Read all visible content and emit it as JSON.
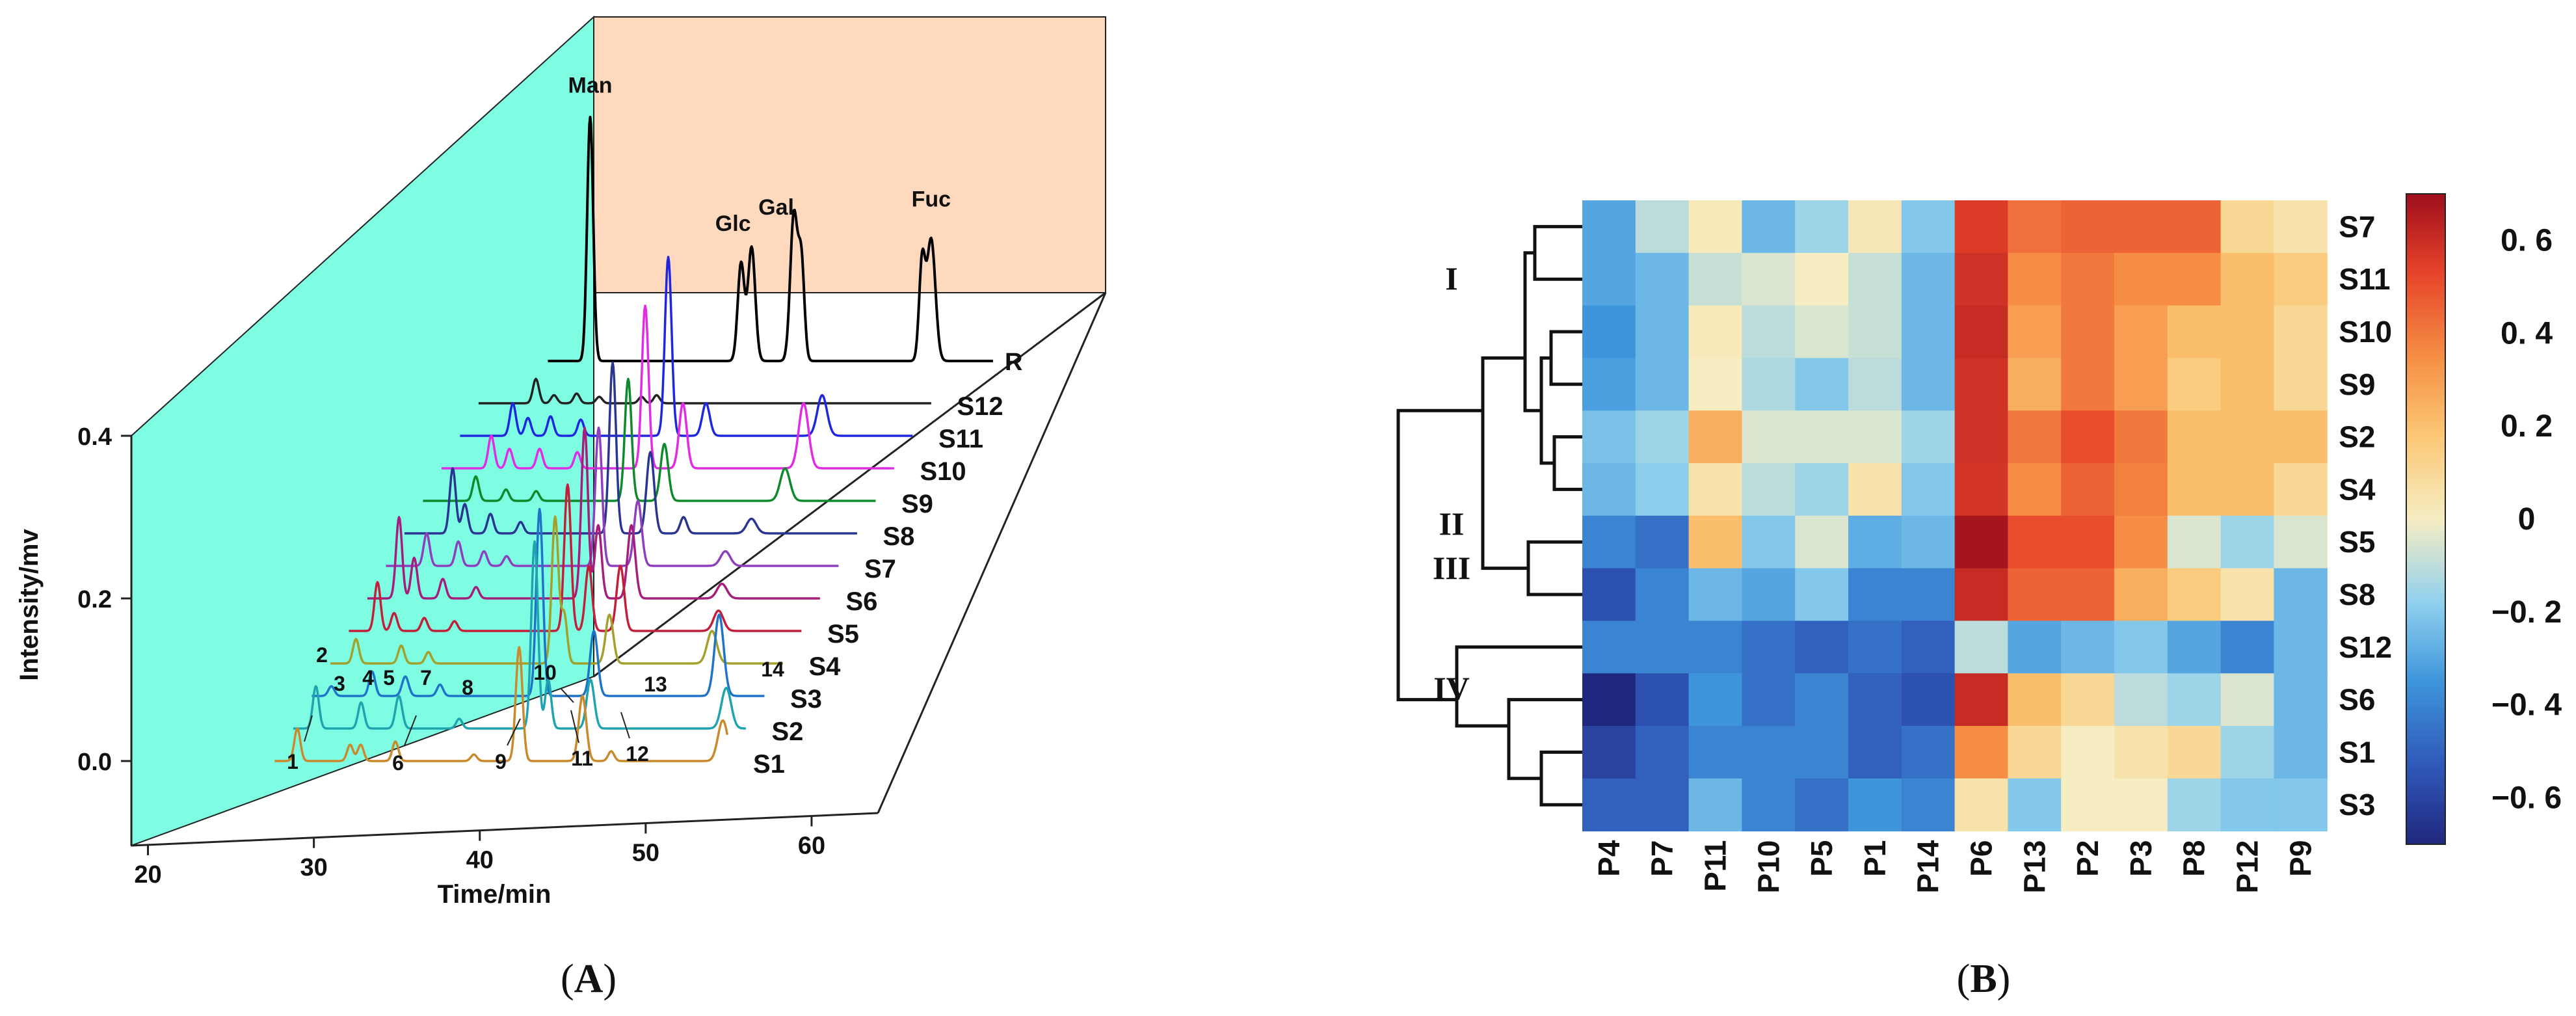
{
  "panels": [
    {
      "letter": "A"
    },
    {
      "letter": "B"
    }
  ],
  "chart_data": [
    {
      "type": "line",
      "subtype": "stacked-3d-chromatograms",
      "xlabel": "Time/min",
      "ylabel": "Intensity/mv",
      "xlim": [
        19,
        64
      ],
      "ylim": [
        -0.05,
        0.42
      ],
      "xticks": [
        20,
        30,
        40,
        50,
        60
      ],
      "yticks": [
        0.0,
        0.2,
        0.4
      ],
      "colors": {
        "side_wall": "#7EFDE3",
        "back_wall": "#FFD9BE"
      },
      "standard": {
        "name": "R",
        "color": "#000000",
        "peaks": [
          {
            "t": 34.3,
            "h": 0.3,
            "w": 0.2,
            "label": "Man"
          },
          {
            "t": 44.3,
            "h": 0.12,
            "w": 0.22,
            "label": "Glc"
          },
          {
            "t": 45.0,
            "h": 0.14,
            "w": 0.24,
            "label": "Gal"
          },
          {
            "t": 47.8,
            "h": 0.18,
            "w": 0.24,
            "label": "Gal"
          },
          {
            "t": 48.3,
            "h": 0.12,
            "w": 0.2,
            "label": ""
          },
          {
            "t": 56.3,
            "h": 0.12,
            "w": 0.2,
            "label": ""
          },
          {
            "t": 56.9,
            "h": 0.15,
            "w": 0.28,
            "label": "Fuc"
          }
        ],
        "peak_labels": [
          "Man",
          "Glc",
          "Gal",
          "Fuc"
        ]
      },
      "peak_numbers": [
        "1",
        "2",
        "3",
        "4",
        "5",
        "6",
        "7",
        "8",
        "9",
        "10",
        "11",
        "12",
        "13",
        "14"
      ],
      "series": [
        {
          "name": "S1",
          "color": "#C98A2E",
          "level": 0,
          "peaks": [
            {
              "t": 30.0,
              "h": 0.04,
              "w": 0.2
            },
            {
              "t": 33.5,
              "h": 0.02,
              "w": 0.2
            },
            {
              "t": 34.2,
              "h": 0.02,
              "w": 0.2
            },
            {
              "t": 36.5,
              "h": 0.024,
              "w": 0.2
            },
            {
              "t": 41.7,
              "h": 0.008,
              "w": 0.2
            },
            {
              "t": 44.7,
              "h": 0.14,
              "w": 0.22
            },
            {
              "t": 48.9,
              "h": 0.08,
              "w": 0.25
            },
            {
              "t": 50.8,
              "h": 0.012,
              "w": 0.2
            },
            {
              "t": 58.2,
              "h": 0.05,
              "w": 0.32
            }
          ]
        },
        {
          "name": "S2",
          "color": "#1FA3AE",
          "level": 1,
          "peaks": [
            {
              "t": 30.0,
              "h": 0.052,
              "w": 0.2
            },
            {
              "t": 33.0,
              "h": 0.032,
              "w": 0.2
            },
            {
              "t": 35.5,
              "h": 0.04,
              "w": 0.22
            },
            {
              "t": 39.5,
              "h": 0.012,
              "w": 0.2
            },
            {
              "t": 44.5,
              "h": 0.23,
              "w": 0.22
            },
            {
              "t": 45.4,
              "h": 0.06,
              "w": 0.2
            },
            {
              "t": 48.2,
              "h": 0.06,
              "w": 0.25
            },
            {
              "t": 57.2,
              "h": 0.05,
              "w": 0.32
            }
          ]
        },
        {
          "name": "S3",
          "color": "#1F74C9",
          "level": 2,
          "peaks": [
            {
              "t": 29.8,
              "h": 0.012,
              "w": 0.2
            },
            {
              "t": 32.5,
              "h": 0.03,
              "w": 0.2
            },
            {
              "t": 34.7,
              "h": 0.024,
              "w": 0.22
            },
            {
              "t": 37.0,
              "h": 0.014,
              "w": 0.2
            },
            {
              "t": 43.6,
              "h": 0.23,
              "w": 0.22
            },
            {
              "t": 47.2,
              "h": 0.08,
              "w": 0.25
            },
            {
              "t": 55.5,
              "h": 0.1,
              "w": 0.3
            }
          ]
        },
        {
          "name": "S4",
          "color": "#A3A02C",
          "level": 3,
          "peaks": [
            {
              "t": 30.2,
              "h": 0.03,
              "w": 0.2
            },
            {
              "t": 33.2,
              "h": 0.022,
              "w": 0.2
            },
            {
              "t": 35.0,
              "h": 0.014,
              "w": 0.2
            },
            {
              "t": 43.4,
              "h": 0.18,
              "w": 0.22
            },
            {
              "t": 44.0,
              "h": 0.06,
              "w": 0.2
            },
            {
              "t": 47.0,
              "h": 0.06,
              "w": 0.25
            },
            {
              "t": 53.8,
              "h": 0.04,
              "w": 0.32
            }
          ]
        },
        {
          "name": "S5",
          "color": "#C21F3A",
          "level": 4,
          "peaks": [
            {
              "t": 30.4,
              "h": 0.06,
              "w": 0.2
            },
            {
              "t": 31.5,
              "h": 0.022,
              "w": 0.2
            },
            {
              "t": 33.5,
              "h": 0.016,
              "w": 0.2
            },
            {
              "t": 35.5,
              "h": 0.012,
              "w": 0.2
            },
            {
              "t": 43.0,
              "h": 0.18,
              "w": 0.22
            },
            {
              "t": 44.4,
              "h": 0.08,
              "w": 0.22
            },
            {
              "t": 46.5,
              "h": 0.08,
              "w": 0.25
            },
            {
              "t": 53.0,
              "h": 0.025,
              "w": 0.32
            }
          ]
        },
        {
          "name": "S6",
          "color": "#A51E7C",
          "level": 5,
          "peaks": [
            {
              "t": 30.6,
              "h": 0.1,
              "w": 0.2
            },
            {
              "t": 31.6,
              "h": 0.05,
              "w": 0.2
            },
            {
              "t": 33.5,
              "h": 0.024,
              "w": 0.2
            },
            {
              "t": 35.7,
              "h": 0.014,
              "w": 0.2
            },
            {
              "t": 42.9,
              "h": 0.21,
              "w": 0.22
            },
            {
              "t": 43.8,
              "h": 0.09,
              "w": 0.22
            },
            {
              "t": 46.0,
              "h": 0.09,
              "w": 0.25
            },
            {
              "t": 52.0,
              "h": 0.018,
              "w": 0.32
            }
          ]
        },
        {
          "name": "S7",
          "color": "#8E3FBE",
          "level": 6,
          "peaks": [
            {
              "t": 31.2,
              "h": 0.04,
              "w": 0.2
            },
            {
              "t": 33.3,
              "h": 0.03,
              "w": 0.2
            },
            {
              "t": 35.0,
              "h": 0.018,
              "w": 0.2
            },
            {
              "t": 36.5,
              "h": 0.012,
              "w": 0.2
            },
            {
              "t": 42.6,
              "h": 0.17,
              "w": 0.22
            },
            {
              "t": 45.2,
              "h": 0.08,
              "w": 0.25
            },
            {
              "t": 51.0,
              "h": 0.018,
              "w": 0.32
            }
          ]
        },
        {
          "name": "S8",
          "color": "#2A3592",
          "level": 7,
          "peaks": [
            {
              "t": 31.7,
              "h": 0.08,
              "w": 0.2
            },
            {
              "t": 32.5,
              "h": 0.036,
              "w": 0.2
            },
            {
              "t": 34.2,
              "h": 0.024,
              "w": 0.2
            },
            {
              "t": 36.2,
              "h": 0.014,
              "w": 0.2
            },
            {
              "t": 42.3,
              "h": 0.21,
              "w": 0.22
            },
            {
              "t": 44.8,
              "h": 0.1,
              "w": 0.25
            },
            {
              "t": 47.0,
              "h": 0.02,
              "w": 0.22
            },
            {
              "t": 51.5,
              "h": 0.018,
              "w": 0.32
            }
          ]
        },
        {
          "name": "S9",
          "color": "#0E8A2C",
          "level": 8,
          "peaks": [
            {
              "t": 32.0,
              "h": 0.03,
              "w": 0.2
            },
            {
              "t": 34.0,
              "h": 0.014,
              "w": 0.2
            },
            {
              "t": 36.0,
              "h": 0.012,
              "w": 0.2
            },
            {
              "t": 42.1,
              "h": 0.15,
              "w": 0.22
            },
            {
              "t": 44.5,
              "h": 0.07,
              "w": 0.25
            },
            {
              "t": 52.5,
              "h": 0.04,
              "w": 0.32
            }
          ]
        },
        {
          "name": "S10",
          "color": "#E22BE4",
          "level": 9,
          "peaks": [
            {
              "t": 31.8,
              "h": 0.04,
              "w": 0.2
            },
            {
              "t": 33.0,
              "h": 0.024,
              "w": 0.2
            },
            {
              "t": 35.0,
              "h": 0.024,
              "w": 0.2
            },
            {
              "t": 37.5,
              "h": 0.02,
              "w": 0.2
            },
            {
              "t": 42.0,
              "h": 0.2,
              "w": 0.22
            },
            {
              "t": 44.5,
              "h": 0.08,
              "w": 0.25
            },
            {
              "t": 52.5,
              "h": 0.08,
              "w": 0.32
            }
          ]
        },
        {
          "name": "S11",
          "color": "#1F26E0",
          "level": 10,
          "peaks": [
            {
              "t": 32.0,
              "h": 0.04,
              "w": 0.2
            },
            {
              "t": 33.0,
              "h": 0.022,
              "w": 0.2
            },
            {
              "t": 34.5,
              "h": 0.024,
              "w": 0.2
            },
            {
              "t": 36.5,
              "h": 0.02,
              "w": 0.2
            },
            {
              "t": 42.3,
              "h": 0.22,
              "w": 0.22
            },
            {
              "t": 44.8,
              "h": 0.04,
              "w": 0.25
            },
            {
              "t": 52.5,
              "h": 0.05,
              "w": 0.32
            }
          ]
        },
        {
          "name": "S12",
          "color": "#222222",
          "level": 11,
          "peaks": [
            {
              "t": 32.3,
              "h": 0.03,
              "w": 0.2
            },
            {
              "t": 33.5,
              "h": 0.01,
              "w": 0.2
            },
            {
              "t": 35.0,
              "h": 0.012,
              "w": 0.2
            },
            {
              "t": 36.5,
              "h": 0.008,
              "w": 0.2
            },
            {
              "t": 39.3,
              "h": 0.008,
              "w": 0.2
            },
            {
              "t": 40.3,
              "h": 0.01,
              "w": 0.2
            }
          ]
        }
      ]
    },
    {
      "type": "heatmap",
      "columns": [
        "P4",
        "P7",
        "P11",
        "P10",
        "P5",
        "P1",
        "P14",
        "P6",
        "P13",
        "P2",
        "P3",
        "P8",
        "P12",
        "P9"
      ],
      "rows": [
        "S7",
        "S11",
        "S10",
        "S9",
        "S2",
        "S4",
        "S5",
        "S8",
        "S12",
        "S6",
        "S1",
        "S3"
      ],
      "values": [
        [
          -0.3,
          -0.1,
          0.02,
          -0.25,
          -0.15,
          0.03,
          -0.2,
          0.55,
          0.42,
          0.45,
          0.45,
          0.45,
          0.1,
          0.05
        ],
        [
          -0.3,
          -0.25,
          -0.08,
          -0.05,
          0.0,
          -0.08,
          -0.25,
          0.58,
          0.35,
          0.4,
          0.35,
          0.35,
          0.2,
          0.15
        ],
        [
          -0.35,
          -0.25,
          0.02,
          -0.1,
          -0.05,
          -0.08,
          -0.25,
          0.6,
          0.3,
          0.4,
          0.3,
          0.2,
          0.2,
          0.1
        ],
        [
          -0.32,
          -0.25,
          0.0,
          -0.12,
          -0.2,
          -0.1,
          -0.25,
          0.58,
          0.25,
          0.4,
          0.3,
          0.15,
          0.2,
          0.1
        ],
        [
          -0.22,
          -0.15,
          0.25,
          -0.05,
          -0.05,
          -0.05,
          -0.15,
          0.58,
          0.4,
          0.5,
          0.4,
          0.2,
          0.2,
          0.2
        ],
        [
          -0.25,
          -0.18,
          0.05,
          -0.1,
          -0.15,
          0.05,
          -0.2,
          0.57,
          0.35,
          0.45,
          0.38,
          0.2,
          0.2,
          0.1
        ],
        [
          -0.4,
          -0.45,
          0.2,
          -0.2,
          -0.05,
          -0.28,
          -0.25,
          0.68,
          0.5,
          0.5,
          0.35,
          -0.05,
          -0.15,
          -0.05
        ],
        [
          -0.55,
          -0.4,
          -0.25,
          -0.3,
          -0.2,
          -0.4,
          -0.4,
          0.6,
          0.45,
          0.45,
          0.25,
          0.15,
          0.05,
          -0.25
        ],
        [
          -0.4,
          -0.4,
          -0.4,
          -0.45,
          -0.5,
          -0.45,
          -0.5,
          -0.1,
          -0.3,
          -0.25,
          -0.2,
          -0.3,
          -0.4,
          -0.25
        ],
        [
          -0.7,
          -0.55,
          -0.35,
          -0.45,
          -0.4,
          -0.5,
          -0.55,
          0.6,
          0.2,
          0.1,
          -0.1,
          -0.15,
          -0.05,
          -0.25
        ],
        [
          -0.6,
          -0.5,
          -0.4,
          -0.4,
          -0.4,
          -0.5,
          -0.45,
          0.35,
          0.1,
          0.0,
          0.05,
          0.1,
          -0.15,
          -0.25
        ],
        [
          -0.5,
          -0.5,
          -0.25,
          -0.4,
          -0.45,
          -0.35,
          -0.4,
          0.05,
          -0.2,
          0.0,
          0.0,
          -0.15,
          -0.2,
          -0.2
        ]
      ],
      "colorbar": {
        "min": -0.7,
        "max": 0.7,
        "ticks": [
          0.6,
          0.4,
          0.2,
          0,
          -0.2,
          -0.4,
          -0.6
        ]
      },
      "cluster_labels": [
        "I",
        "II",
        "III",
        "IV"
      ]
    }
  ]
}
